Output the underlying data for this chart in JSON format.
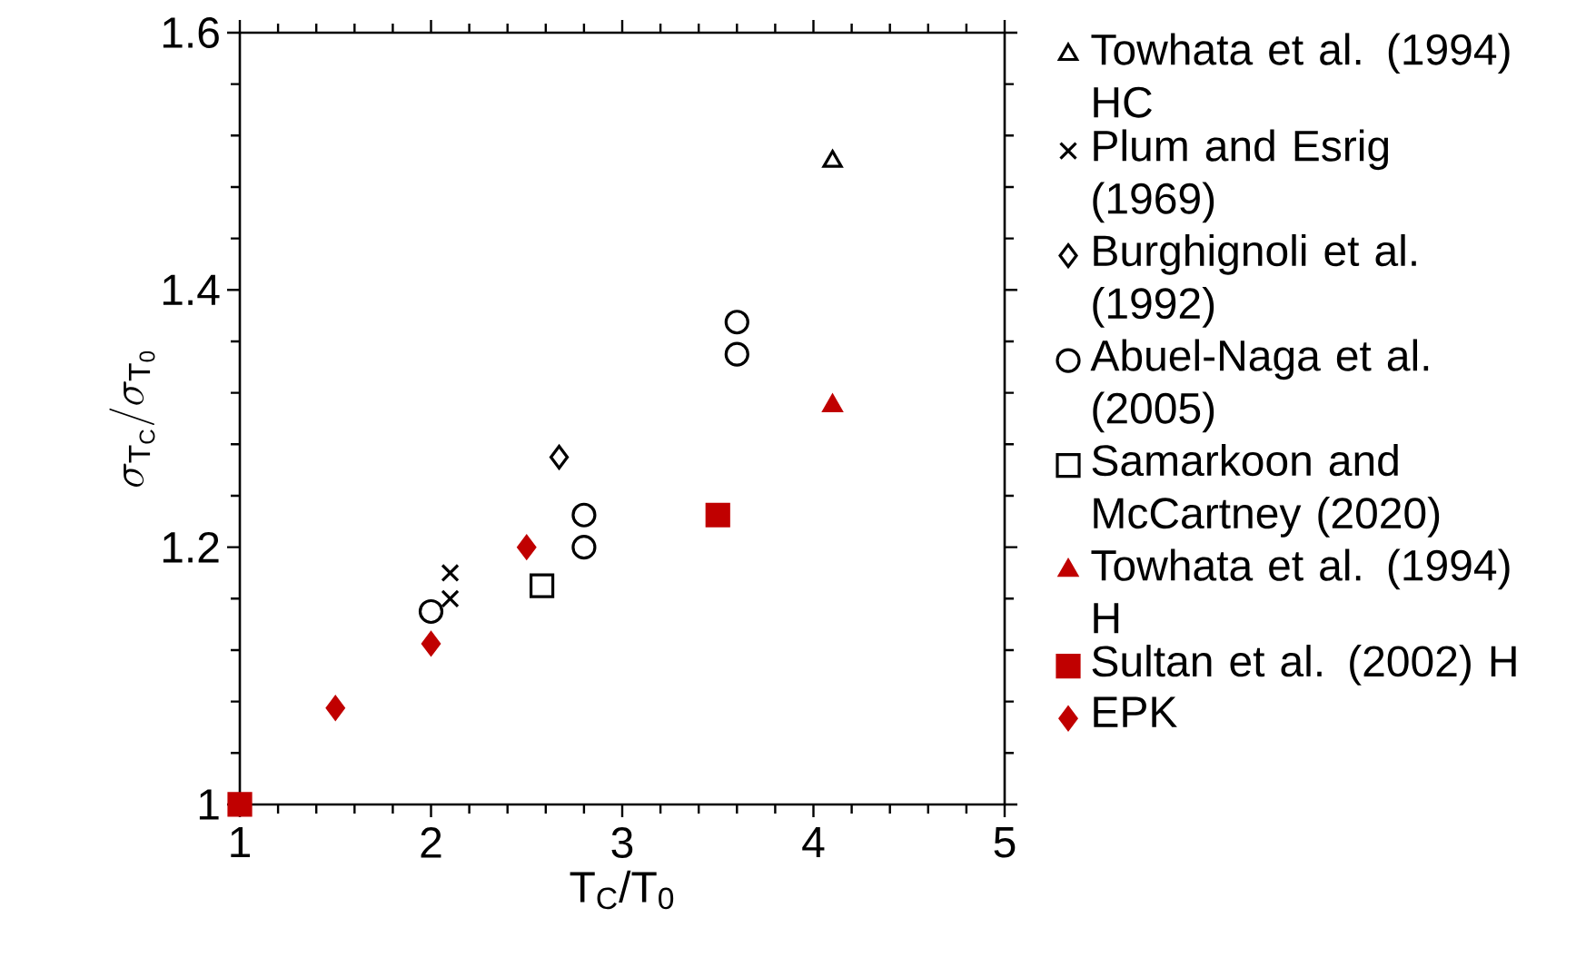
{
  "chart_data": {
    "type": "scatter",
    "xlabel": "T$_{C}$/T$_{0}$",
    "ylabel": "\\sigma_{\\mathrm{T_C}}/\\sigma_{\\mathrm{T_0}}",
    "xlim": [
      1,
      5
    ],
    "ylim": [
      1,
      1.6
    ],
    "xticks": [
      1,
      2,
      3,
      4,
      5
    ],
    "yticks": [
      1,
      1.2,
      1.4,
      1.6
    ],
    "grid": false,
    "legend": "right",
    "series": [
      {
        "name": "Towhata et al. (1994) HC",
        "color": "#000000",
        "marker": "triangle",
        "x": [
          4.1
        ],
        "values": [
          1.5
        ]
      },
      {
        "name": "Plum and Esrig (1969)",
        "color": "#000000",
        "marker": "cross",
        "x": [
          2.1,
          2.1
        ],
        "values": [
          1.18,
          1.16
        ]
      },
      {
        "name": "Burghignoli et al. (1992)",
        "color": "#000000",
        "marker": "diamond",
        "x": [
          2.67
        ],
        "values": [
          1.27
        ]
      },
      {
        "name": "Abuel-Naga et al. (2005)",
        "color": "#000000",
        "marker": "circle",
        "x": [
          2,
          2.8,
          2.8,
          3.6,
          3.6
        ],
        "values": [
          1.15,
          1.225,
          1.2,
          1.375,
          1.35
        ]
      },
      {
        "name": "Samarkoon and McCartney (2020)",
        "color": "#000000",
        "marker": "square",
        "x": [
          2.58
        ],
        "values": [
          1.17
        ]
      },
      {
        "name": "Towhata et al. (1994) H",
        "color": "#c00000",
        "marker": "triangle",
        "x": [
          4.1
        ],
        "values": [
          1.31
        ]
      },
      {
        "name": "Sultan et al. (2002) H",
        "color": "#c00000",
        "marker": "square",
        "x": [
          1,
          3.5
        ],
        "values": [
          1,
          1.225
        ]
      },
      {
        "name": "EPK",
        "color": "#c00000",
        "marker": "diamond",
        "x": [
          1.5,
          2,
          2.5
        ],
        "values": [
          1.075,
          1.125,
          1.2
        ]
      }
    ]
  }
}
